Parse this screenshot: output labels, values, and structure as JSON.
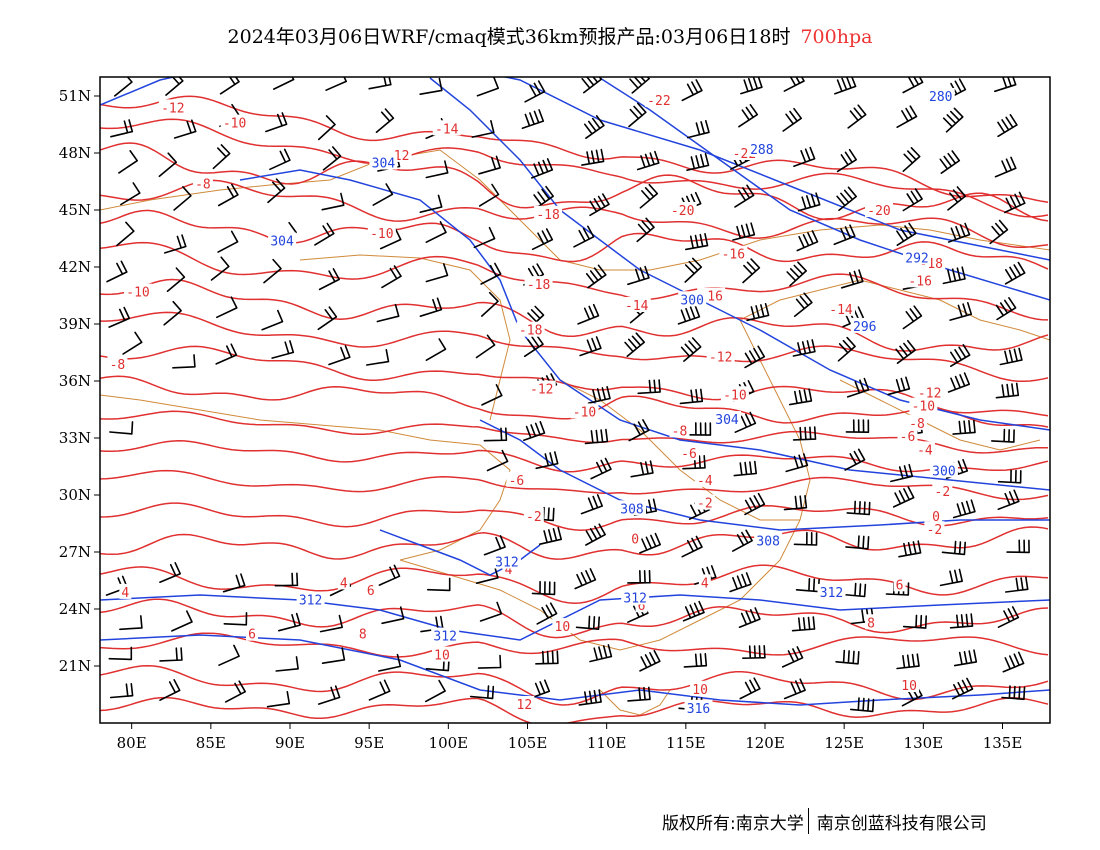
{
  "title": {
    "main": "2024年03月06日WRF/cmaq模式36km预报产品:03月06日18时",
    "level": "700hpa",
    "level_color": "#ee3333"
  },
  "footer": {
    "left": "版权所有:南京大学",
    "right": "南京创蓝科技有限公司"
  },
  "colors": {
    "temperature_contour": "#e03030",
    "height_contour": "#2244dd",
    "border": "#d08a3a",
    "wind_barb": "#000000",
    "frame": "#000000"
  },
  "map": {
    "lon_range": [
      78,
      138
    ],
    "lat_range": [
      18,
      52
    ],
    "x_ticks": [
      "80E",
      "85E",
      "90E",
      "95E",
      "100E",
      "105E",
      "110E",
      "115E",
      "120E",
      "125E",
      "130E",
      "135E"
    ],
    "x_tick_lons": [
      80,
      85,
      90,
      95,
      100,
      105,
      110,
      115,
      120,
      125,
      130,
      135
    ],
    "y_ticks": [
      "21N",
      "24N",
      "27N",
      "30N",
      "33N",
      "36N",
      "39N",
      "42N",
      "45N",
      "48N",
      "51N"
    ],
    "y_tick_lats": [
      21,
      24,
      27,
      30,
      33,
      36,
      39,
      42,
      45,
      48,
      51
    ],
    "temperature_labels": [
      {
        "text": "-12",
        "lon": 82.6,
        "lat": 50.4
      },
      {
        "text": "-10",
        "lon": 86.5,
        "lat": 49.6
      },
      {
        "text": "-14",
        "lon": 99.9,
        "lat": 49.3
      },
      {
        "text": "-12",
        "lon": 96.8,
        "lat": 47.9
      },
      {
        "text": "-8",
        "lon": 84.5,
        "lat": 46.4
      },
      {
        "text": "-22",
        "lon": 113.3,
        "lat": 50.8
      },
      {
        "text": "-22",
        "lon": 118.7,
        "lat": 48.0
      },
      {
        "text": "-18",
        "lon": 106.3,
        "lat": 44.8
      },
      {
        "text": "-20",
        "lon": 114.8,
        "lat": 45.0
      },
      {
        "text": "-20",
        "lon": 127.2,
        "lat": 45.0
      },
      {
        "text": "-10",
        "lon": 95.8,
        "lat": 43.8
      },
      {
        "text": "-16",
        "lon": 118.0,
        "lat": 42.7
      },
      {
        "text": "-18",
        "lon": 130.5,
        "lat": 42.2
      },
      {
        "text": "-16",
        "lon": 129.8,
        "lat": 41.3
      },
      {
        "text": "-18",
        "lon": 105.7,
        "lat": 41.1
      },
      {
        "text": "-10",
        "lon": 80.4,
        "lat": 40.7
      },
      {
        "text": "-16",
        "lon": 116.6,
        "lat": 40.5
      },
      {
        "text": "-14",
        "lon": 111.9,
        "lat": 40.0
      },
      {
        "text": "-14",
        "lon": 124.8,
        "lat": 39.8
      },
      {
        "text": "-8",
        "lon": 79.1,
        "lat": 36.9
      },
      {
        "text": "-18",
        "lon": 105.2,
        "lat": 38.7
      },
      {
        "text": "-12",
        "lon": 117.2,
        "lat": 37.3
      },
      {
        "text": "-10",
        "lon": 118.1,
        "lat": 35.3
      },
      {
        "text": "-12",
        "lon": 105.9,
        "lat": 35.6
      },
      {
        "text": "-12",
        "lon": 130.4,
        "lat": 35.4
      },
      {
        "text": "-10",
        "lon": 108.6,
        "lat": 34.4
      },
      {
        "text": "-10",
        "lon": 130.0,
        "lat": 34.7
      },
      {
        "text": "-8",
        "lon": 114.6,
        "lat": 33.4
      },
      {
        "text": "-8",
        "lon": 129.6,
        "lat": 33.8
      },
      {
        "text": "-6",
        "lon": 129.0,
        "lat": 33.1
      },
      {
        "text": "-4",
        "lon": 130.1,
        "lat": 32.4
      },
      {
        "text": "-6",
        "lon": 115.2,
        "lat": 32.2
      },
      {
        "text": "-6",
        "lon": 104.3,
        "lat": 30.8
      },
      {
        "text": "-4",
        "lon": 116.2,
        "lat": 30.8
      },
      {
        "text": "-2",
        "lon": 131.2,
        "lat": 30.2
      },
      {
        "text": "-2",
        "lon": 116.2,
        "lat": 29.6
      },
      {
        "text": "-2",
        "lon": 105.4,
        "lat": 28.9
      },
      {
        "text": "0",
        "lon": 130.8,
        "lat": 28.9
      },
      {
        "text": "-2",
        "lon": 130.7,
        "lat": 28.2
      },
      {
        "text": "0",
        "lon": 111.8,
        "lat": 27.7
      },
      {
        "text": "4",
        "lon": 103.8,
        "lat": 26.1
      },
      {
        "text": "4",
        "lon": 79.6,
        "lat": 24.9
      },
      {
        "text": "6",
        "lon": 95.1,
        "lat": 25.0
      },
      {
        "text": "4",
        "lon": 93.4,
        "lat": 25.4
      },
      {
        "text": "4",
        "lon": 116.2,
        "lat": 25.4
      },
      {
        "text": "6",
        "lon": 128.5,
        "lat": 25.3
      },
      {
        "text": "6",
        "lon": 112.2,
        "lat": 24.2
      },
      {
        "text": "6",
        "lon": 87.6,
        "lat": 22.7
      },
      {
        "text": "8",
        "lon": 94.6,
        "lat": 22.7
      },
      {
        "text": "8",
        "lon": 126.7,
        "lat": 23.3
      },
      {
        "text": "10",
        "lon": 107.2,
        "lat": 23.1
      },
      {
        "text": "10",
        "lon": 99.6,
        "lat": 21.6
      },
      {
        "text": "12",
        "lon": 104.8,
        "lat": 19.0
      },
      {
        "text": "10",
        "lon": 115.9,
        "lat": 19.8
      },
      {
        "text": "10",
        "lon": 129.1,
        "lat": 20.0
      }
    ],
    "height_labels": [
      {
        "text": "280",
        "lon": 131.1,
        "lat": 51.0
      },
      {
        "text": "288",
        "lon": 119.8,
        "lat": 48.2
      },
      {
        "text": "304",
        "lon": 95.9,
        "lat": 47.5
      },
      {
        "text": "304",
        "lon": 89.5,
        "lat": 43.4
      },
      {
        "text": "292",
        "lon": 129.6,
        "lat": 42.5
      },
      {
        "text": "300",
        "lon": 115.4,
        "lat": 40.3
      },
      {
        "text": "296",
        "lon": 126.3,
        "lat": 38.9
      },
      {
        "text": "304",
        "lon": 117.6,
        "lat": 34.0
      },
      {
        "text": "300",
        "lon": 131.3,
        "lat": 31.3
      },
      {
        "text": "308",
        "lon": 111.6,
        "lat": 29.3
      },
      {
        "text": "308",
        "lon": 120.2,
        "lat": 27.6
      },
      {
        "text": "312",
        "lon": 103.7,
        "lat": 26.5
      },
      {
        "text": "312",
        "lon": 124.2,
        "lat": 24.9
      },
      {
        "text": "312",
        "lon": 111.8,
        "lat": 24.6
      },
      {
        "text": "312",
        "lon": 91.3,
        "lat": 24.5
      },
      {
        "text": "312",
        "lon": 99.8,
        "lat": 22.6
      },
      {
        "text": "316",
        "lon": 115.8,
        "lat": 18.8
      }
    ]
  }
}
